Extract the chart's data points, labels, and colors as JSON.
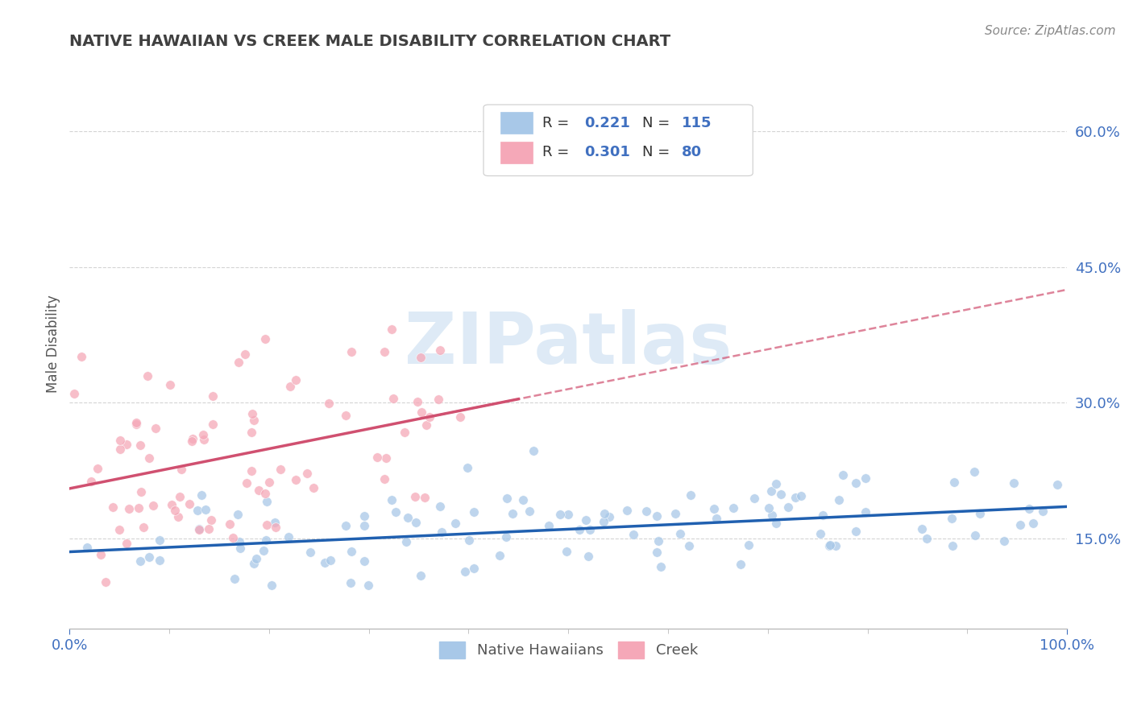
{
  "title": "NATIVE HAWAIIAN VS CREEK MALE DISABILITY CORRELATION CHART",
  "source": "Source: ZipAtlas.com",
  "ylabel": "Male Disability",
  "xlim": [
    0.0,
    1.0
  ],
  "ylim": [
    0.05,
    0.68
  ],
  "yticks": [
    0.15,
    0.3,
    0.45,
    0.6
  ],
  "ytick_labels": [
    "15.0%",
    "30.0%",
    "45.0%",
    "60.0%"
  ],
  "xticks": [
    0.0,
    1.0
  ],
  "xtick_labels": [
    "0.0%",
    "100.0%"
  ],
  "blue_scatter_color": "#a8c8e8",
  "pink_scatter_color": "#f5a8b8",
  "blue_line_color": "#2060b0",
  "pink_line_color": "#d05070",
  "pink_dash_color": "#d05070",
  "watermark_color": "#c8ddf0",
  "watermark_text": "ZIPatlas",
  "legend_R1": "0.221",
  "legend_N1": "115",
  "legend_R2": "0.301",
  "legend_N2": "80",
  "blue_N": 115,
  "pink_N": 80,
  "background_color": "#ffffff",
  "grid_color": "#d0d0d0",
  "title_color": "#404040",
  "axis_label_color": "#555555",
  "tick_label_color": "#4070c0",
  "legend_text_color": "#4070c0",
  "source_color": "#888888",
  "title_fontsize": 14,
  "tick_fontsize": 13,
  "legend_fontsize": 13
}
